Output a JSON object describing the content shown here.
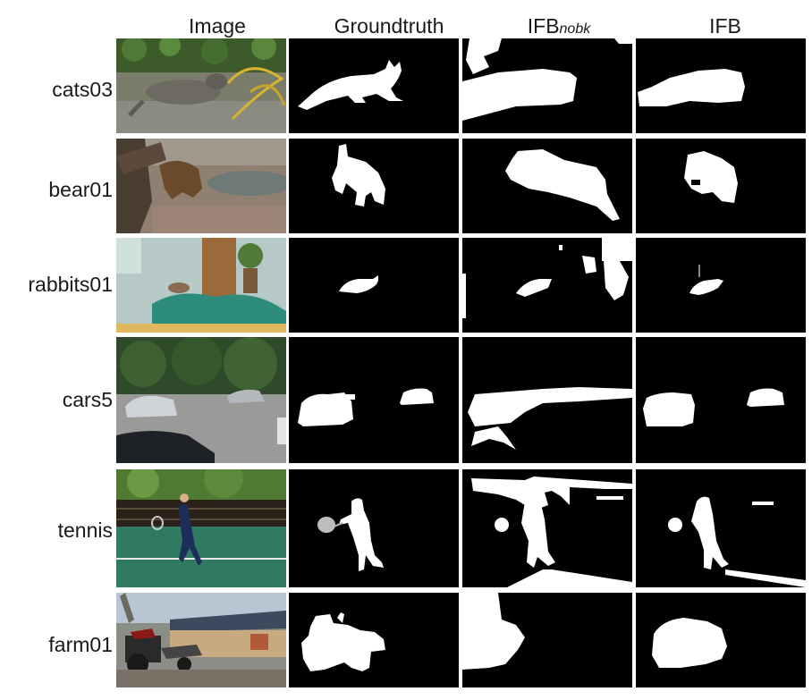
{
  "columns": {
    "image": "Image",
    "groundtruth": "Groundtruth",
    "ifb_nobk_main": "IFB",
    "ifb_nobk_sub": "nobk",
    "ifb": "IFB"
  },
  "rows": [
    {
      "label": "cats03"
    },
    {
      "label": "bear01"
    },
    {
      "label": "rabbits01"
    },
    {
      "label": "cars5"
    },
    {
      "label": "tennis"
    },
    {
      "label": "farm01"
    }
  ],
  "colors": {
    "mask_background": "#000000",
    "mask_foreground": "#ffffff",
    "racket": "#bdbdbd"
  }
}
